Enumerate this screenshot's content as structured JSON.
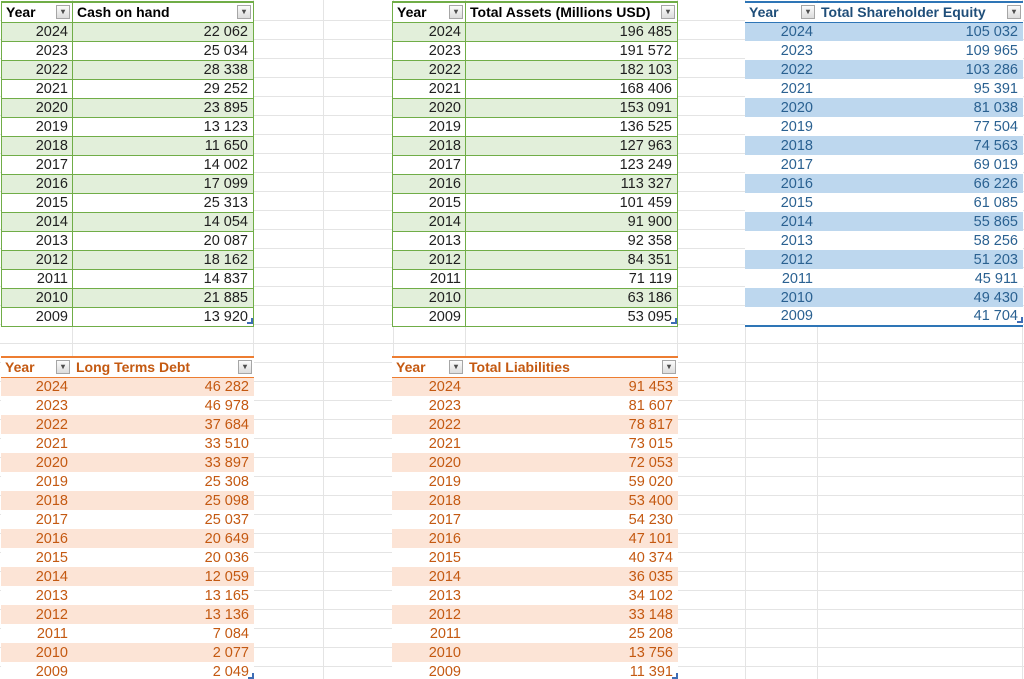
{
  "sheet": {
    "years": [
      "2024",
      "2023",
      "2022",
      "2021",
      "2020",
      "2019",
      "2018",
      "2017",
      "2016",
      "2015",
      "2014",
      "2013",
      "2012",
      "2011",
      "2010",
      "2009"
    ],
    "tables": [
      {
        "name": "cash-on-hand",
        "theme": "green",
        "year_header": "Year",
        "value_header": "Cash on hand",
        "values": [
          "22 062",
          "25 034",
          "28 338",
          "29 252",
          "23 895",
          "13 123",
          "11 650",
          "14 002",
          "17 099",
          "25 313",
          "14 054",
          "20 087",
          "18 162",
          "14 837",
          "21 885",
          "13 920"
        ]
      },
      {
        "name": "total-assets",
        "theme": "green",
        "year_header": "Year",
        "value_header": "Total Assets (Millions USD)",
        "values": [
          "196 485",
          "191 572",
          "182 103",
          "168 406",
          "153 091",
          "136 525",
          "127 963",
          "123 249",
          "113 327",
          "101 459",
          "91 900",
          "92 358",
          "84 351",
          "71 119",
          "63 186",
          "53 095"
        ]
      },
      {
        "name": "total-shareholder-equity",
        "theme": "blue",
        "year_header": "Year",
        "value_header": "Total Shareholder Equity",
        "values": [
          "105 032",
          "109 965",
          "103 286",
          "95 391",
          "81 038",
          "77 504",
          "74 563",
          "69 019",
          "66 226",
          "61 085",
          "55 865",
          "58 256",
          "51 203",
          "45 911",
          "49 430",
          "41 704"
        ]
      },
      {
        "name": "long-terms-debt",
        "theme": "orange",
        "year_header": "Year",
        "value_header": "Long Terms Debt",
        "values": [
          "46 282",
          "46 978",
          "37 684",
          "33 510",
          "33 897",
          "25 308",
          "25 098",
          "25 037",
          "20 649",
          "20 036",
          "12 059",
          "13 165",
          "13 136",
          "7 084",
          "2 077",
          "2 049"
        ]
      },
      {
        "name": "total-liabilities",
        "theme": "orange",
        "year_header": "Year",
        "value_header": "Total Liabilities",
        "values": [
          "91 453",
          "81 607",
          "78 817",
          "73 015",
          "72 053",
          "59 020",
          "53 400",
          "54 230",
          "47 101",
          "40 374",
          "36 035",
          "34 102",
          "33 148",
          "25 208",
          "13 756",
          "11 391"
        ]
      }
    ]
  },
  "icons": {
    "filter_dropdown": "▾"
  },
  "themes": {
    "green": {
      "band": "#E2EFDA",
      "border": "#70AD47",
      "strong": "#70AD47",
      "text": "#1F1F1F",
      "header_text": "#000000"
    },
    "blue": {
      "band": "#BDD7EE",
      "border": "transparent",
      "strong": "#2E75B6",
      "text": "#2A6191",
      "header_text": "#1F4E79"
    },
    "orange": {
      "band": "#FCE4D6",
      "border": "transparent",
      "strong": "#ED7D31",
      "text": "#C45911",
      "header_text": "#C45911"
    }
  },
  "grid_color": "#E4E4E4"
}
